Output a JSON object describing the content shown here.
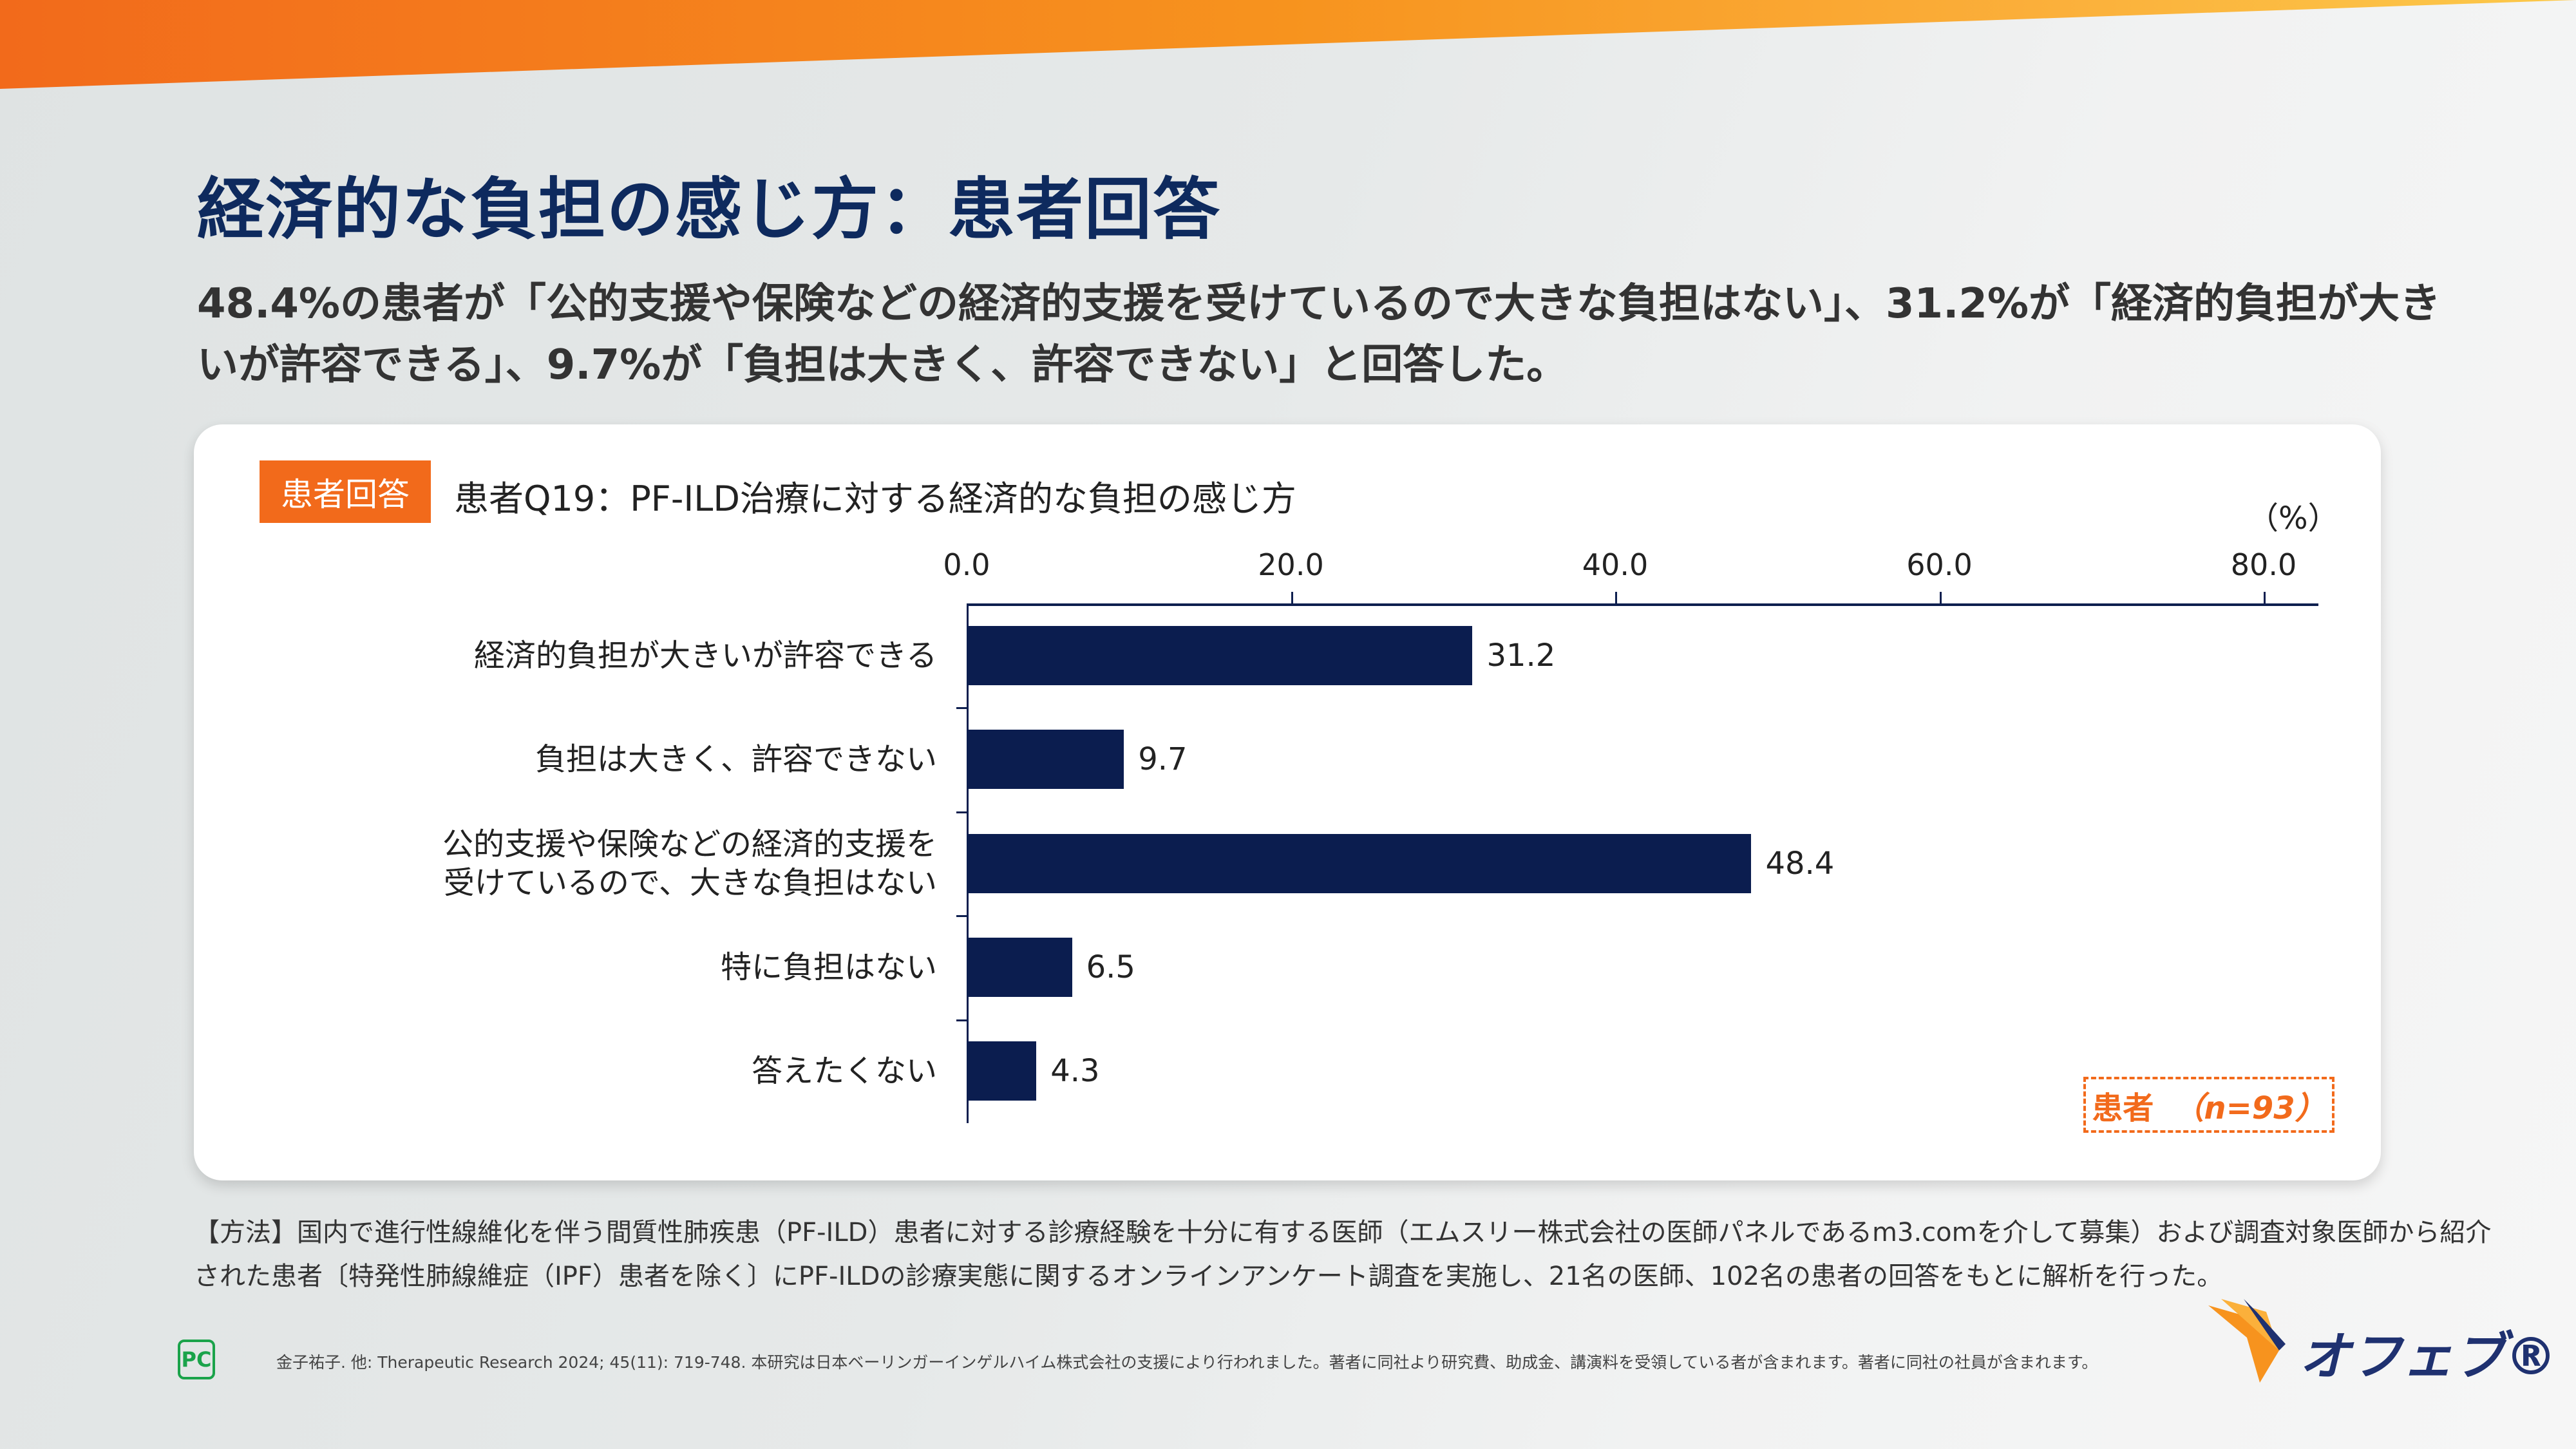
{
  "title": "経済的な負担の感じ方：患者回答",
  "subtitle": "48.4%の患者が「公的支援や保険などの経済的支援を受けているので大きな負担はない」、31.2%が「経済的負担が大きいが許容できる」、9.7%が「負担は大きく、許容できない」と回答した。",
  "card": {
    "badge": "患者回答",
    "n_label": "患者",
    "n_value": "（n=93）"
  },
  "chart_data": {
    "type": "bar",
    "orientation": "horizontal",
    "title": "患者Q19：PF-ILD治療に対する経済的な負担の感じ方",
    "unit": "（%）",
    "xlim": [
      0,
      80
    ],
    "ticks": [
      "0.0",
      "20.0",
      "40.0",
      "60.0",
      "80.0"
    ],
    "categories": [
      "経済的負担が大きいが許容できる",
      "負担は大きく、許容できない",
      "公的支援や保険などの経済的支援を\n受けているので、大きな負担はない",
      "特に負担はない",
      "答えたくない"
    ],
    "values": [
      31.2,
      9.7,
      48.4,
      6.5,
      4.3
    ],
    "color": "#0b1d4f"
  },
  "method": "【方法】国内で進行性線維化を伴う間質性肺疾患（PF-ILD）患者に対する診療経験を十分に有する医師（エムスリー株式会社の医師パネルであるm3.comを介して募集）および調査対象医師から紹介された患者〔特発性肺線維症（IPF）患者を除く〕にPF-ILDの診療実態に関するオンラインアンケート調査を実施し、21名の医師、102名の患者の回答をもとに解析を行った。",
  "footnote": "金子祐子. 他: Therapeutic Research 2024; 45(11): 719-748.  本研究は日本ベーリンガーインゲルハイム株式会社の支援により行われました。著者に同社より研究費、助成金、講演料を受領している者が含まれます。著者に同社の社員が含まれます。",
  "pc_icon": "PC",
  "logo": "オフェブ®",
  "colors": {
    "accent": "#f26a1b",
    "navy": "#0e2a5e"
  }
}
